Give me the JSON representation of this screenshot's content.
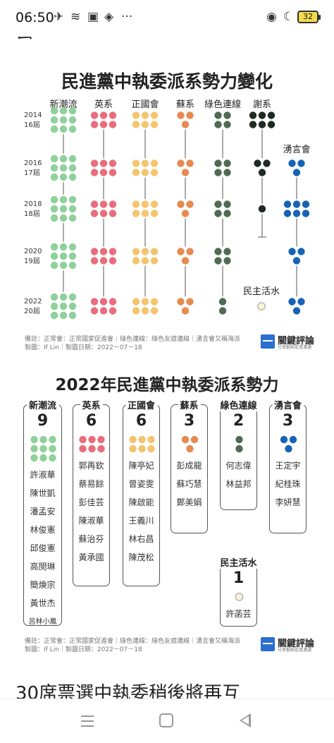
{
  "status_bar": {
    "time": "06:50",
    "battery": "32"
  },
  "top_cut_text": "芸",
  "bottom_cut_text": "30席票選中執委稍後將再互",
  "colors": {
    "新潮流": "#8fd19a",
    "英系": "#ea6d7c",
    "正國會": "#f4c46e",
    "蘇系": "#e68a4f",
    "綠色連線": "#4f6b53",
    "謝系": "#1f2a22",
    "湧言會": "#1763b4",
    "民主活水": "#fbf3d6"
  },
  "chart_data": [
    {
      "type": "dot-matrix",
      "title": "民進黨中執委派系勢力變化",
      "factions": [
        "新潮流",
        "英系",
        "正國會",
        "蘇系",
        "綠色連線",
        "謝系",
        "湧言會",
        "民主活水"
      ],
      "years": [
        {
          "year": "2014",
          "term": "16屆",
          "seats": {
            "新潮流": 9,
            "英系": 6,
            "正國會": 6,
            "蘇系": 3,
            "綠色連線": 4,
            "謝系": 6
          }
        },
        {
          "year": "2016",
          "term": "17屆",
          "seats": {
            "新潮流": 9,
            "英系": 6,
            "正國會": 6,
            "蘇系": 3,
            "綠色連線": 4,
            "謝系": 3,
            "湧言會": 3
          }
        },
        {
          "year": "2018",
          "term": "18屆",
          "seats": {
            "新潮流": 9,
            "英系": 6,
            "正國會": 6,
            "蘇系": 3,
            "綠色連線": 4,
            "謝系": 1,
            "湧言會": 6
          }
        },
        {
          "year": "2020",
          "term": "19屆",
          "seats": {
            "新潮流": 9,
            "英系": 6,
            "正國會": 6,
            "蘇系": 3,
            "綠色連線": 4,
            "湧言會": 3
          }
        },
        {
          "year": "2022",
          "term": "20屆",
          "seats": {
            "新潮流": 9,
            "英系": 6,
            "正國會": 6,
            "蘇系": 3,
            "綠色連線": 2,
            "湧言會": 3,
            "民主活水": 1
          }
        }
      ],
      "labels": {
        "湧言會": "湧言會",
        "民主活水": "民主活水"
      },
      "footnote": "備註：正常會：正常國家促進會｜綠色連線：綠色友誼連線｜湧言會又稱海派",
      "credit": "製圖：If Lin｜製圖日期：2022－07－18",
      "brand": "關鍵評論",
      "brand_sub": "分享觀點促進溝通"
    },
    {
      "type": "dot-matrix",
      "title": "2022年民進黨中執委派系勢力",
      "factions": [
        {
          "name": "新潮流",
          "count": "9",
          "members": [
            "許淑華",
            "陳世凱",
            "潘孟安",
            "林俊憲",
            "邱俊憲",
            "高閔琳",
            "簡煥宗",
            "黃世杰",
            "呂林小鳳"
          ]
        },
        {
          "name": "英系",
          "count": "6",
          "members": [
            "郭再欽",
            "蔡易餘",
            "彭佳芸",
            "陳淑華",
            "蘇治芬",
            "黃承國"
          ]
        },
        {
          "name": "正國會",
          "count": "6",
          "members": [
            "陳亭妃",
            "曾姿雯",
            "陳啟能",
            "王義川",
            "林右昌",
            "陳茂松"
          ]
        },
        {
          "name": "蘇系",
          "count": "3",
          "members": [
            "彭成龍",
            "蘇巧慧",
            "鄭美娟"
          ]
        },
        {
          "name": "綠色連線",
          "count": "2",
          "members": [
            "何志偉",
            "林益邦"
          ]
        },
        {
          "name": "湧言會",
          "count": "3",
          "members": [
            "王定宇",
            "紀桂珠",
            "李妍慧"
          ]
        },
        {
          "name": "民主活水",
          "count": "1",
          "members": [
            "許菡芸"
          ]
        }
      ],
      "footnote": "備註：正常會：正常國家促進會｜綠色連線：綠色友誼連線｜湧言會又稱海派",
      "credit": "製圖：If Lin｜製圖日期：2022－07－18",
      "brand": "關鍵評論",
      "brand_sub": "分享觀點促進溝通"
    }
  ]
}
